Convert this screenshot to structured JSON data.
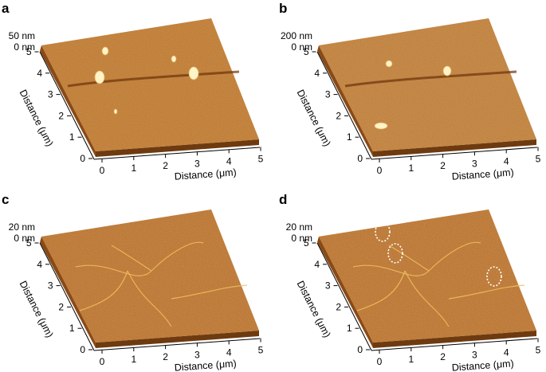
{
  "figure": {
    "panels": [
      {
        "letter": "a",
        "z_scale": [
          "50 nm",
          "0 nm"
        ],
        "x_axis": {
          "title": "Distance (μm)",
          "ticks": [
            "0",
            "1",
            "2",
            "3",
            "4",
            "5"
          ]
        },
        "y_axis": {
          "title": "Distance (μm)",
          "ticks": [
            "0",
            "1",
            "2",
            "3",
            "4",
            "5"
          ]
        },
        "surface_color": "#b86a22",
        "features": "particles"
      },
      {
        "letter": "b",
        "z_scale": [
          "200 nm",
          "0 nm"
        ],
        "x_axis": {
          "title": "Distance (μm)",
          "ticks": [
            "0",
            "1",
            "2",
            "3",
            "4",
            "5"
          ]
        },
        "y_axis": {
          "title": "Distance (μm)",
          "ticks": [
            "0",
            "1",
            "2",
            "3",
            "4",
            "5"
          ]
        },
        "surface_color": "#b9712f",
        "features": "particles"
      },
      {
        "letter": "c",
        "z_scale": [
          "20 nm",
          "0 nm"
        ],
        "x_axis": {
          "title": "Distance (μm)",
          "ticks": [
            "0",
            "1",
            "2",
            "3",
            "4",
            "5"
          ]
        },
        "y_axis": {
          "title": "Distance (μm)",
          "ticks": [
            "0",
            "1",
            "2",
            "3",
            "4",
            "5"
          ]
        },
        "surface_color": "#b2611f",
        "features": "network"
      },
      {
        "letter": "d",
        "z_scale": [
          "20 nm",
          "0 nm"
        ],
        "x_axis": {
          "title": "Distance (μm)",
          "ticks": [
            "0",
            "1",
            "2",
            "3",
            "4",
            "5"
          ]
        },
        "y_axis": {
          "title": "Distance (μm)",
          "ticks": [
            "0",
            "1",
            "2",
            "3",
            "4",
            "5"
          ]
        },
        "surface_color": "#b2611f",
        "features": "network-circled"
      }
    ]
  }
}
